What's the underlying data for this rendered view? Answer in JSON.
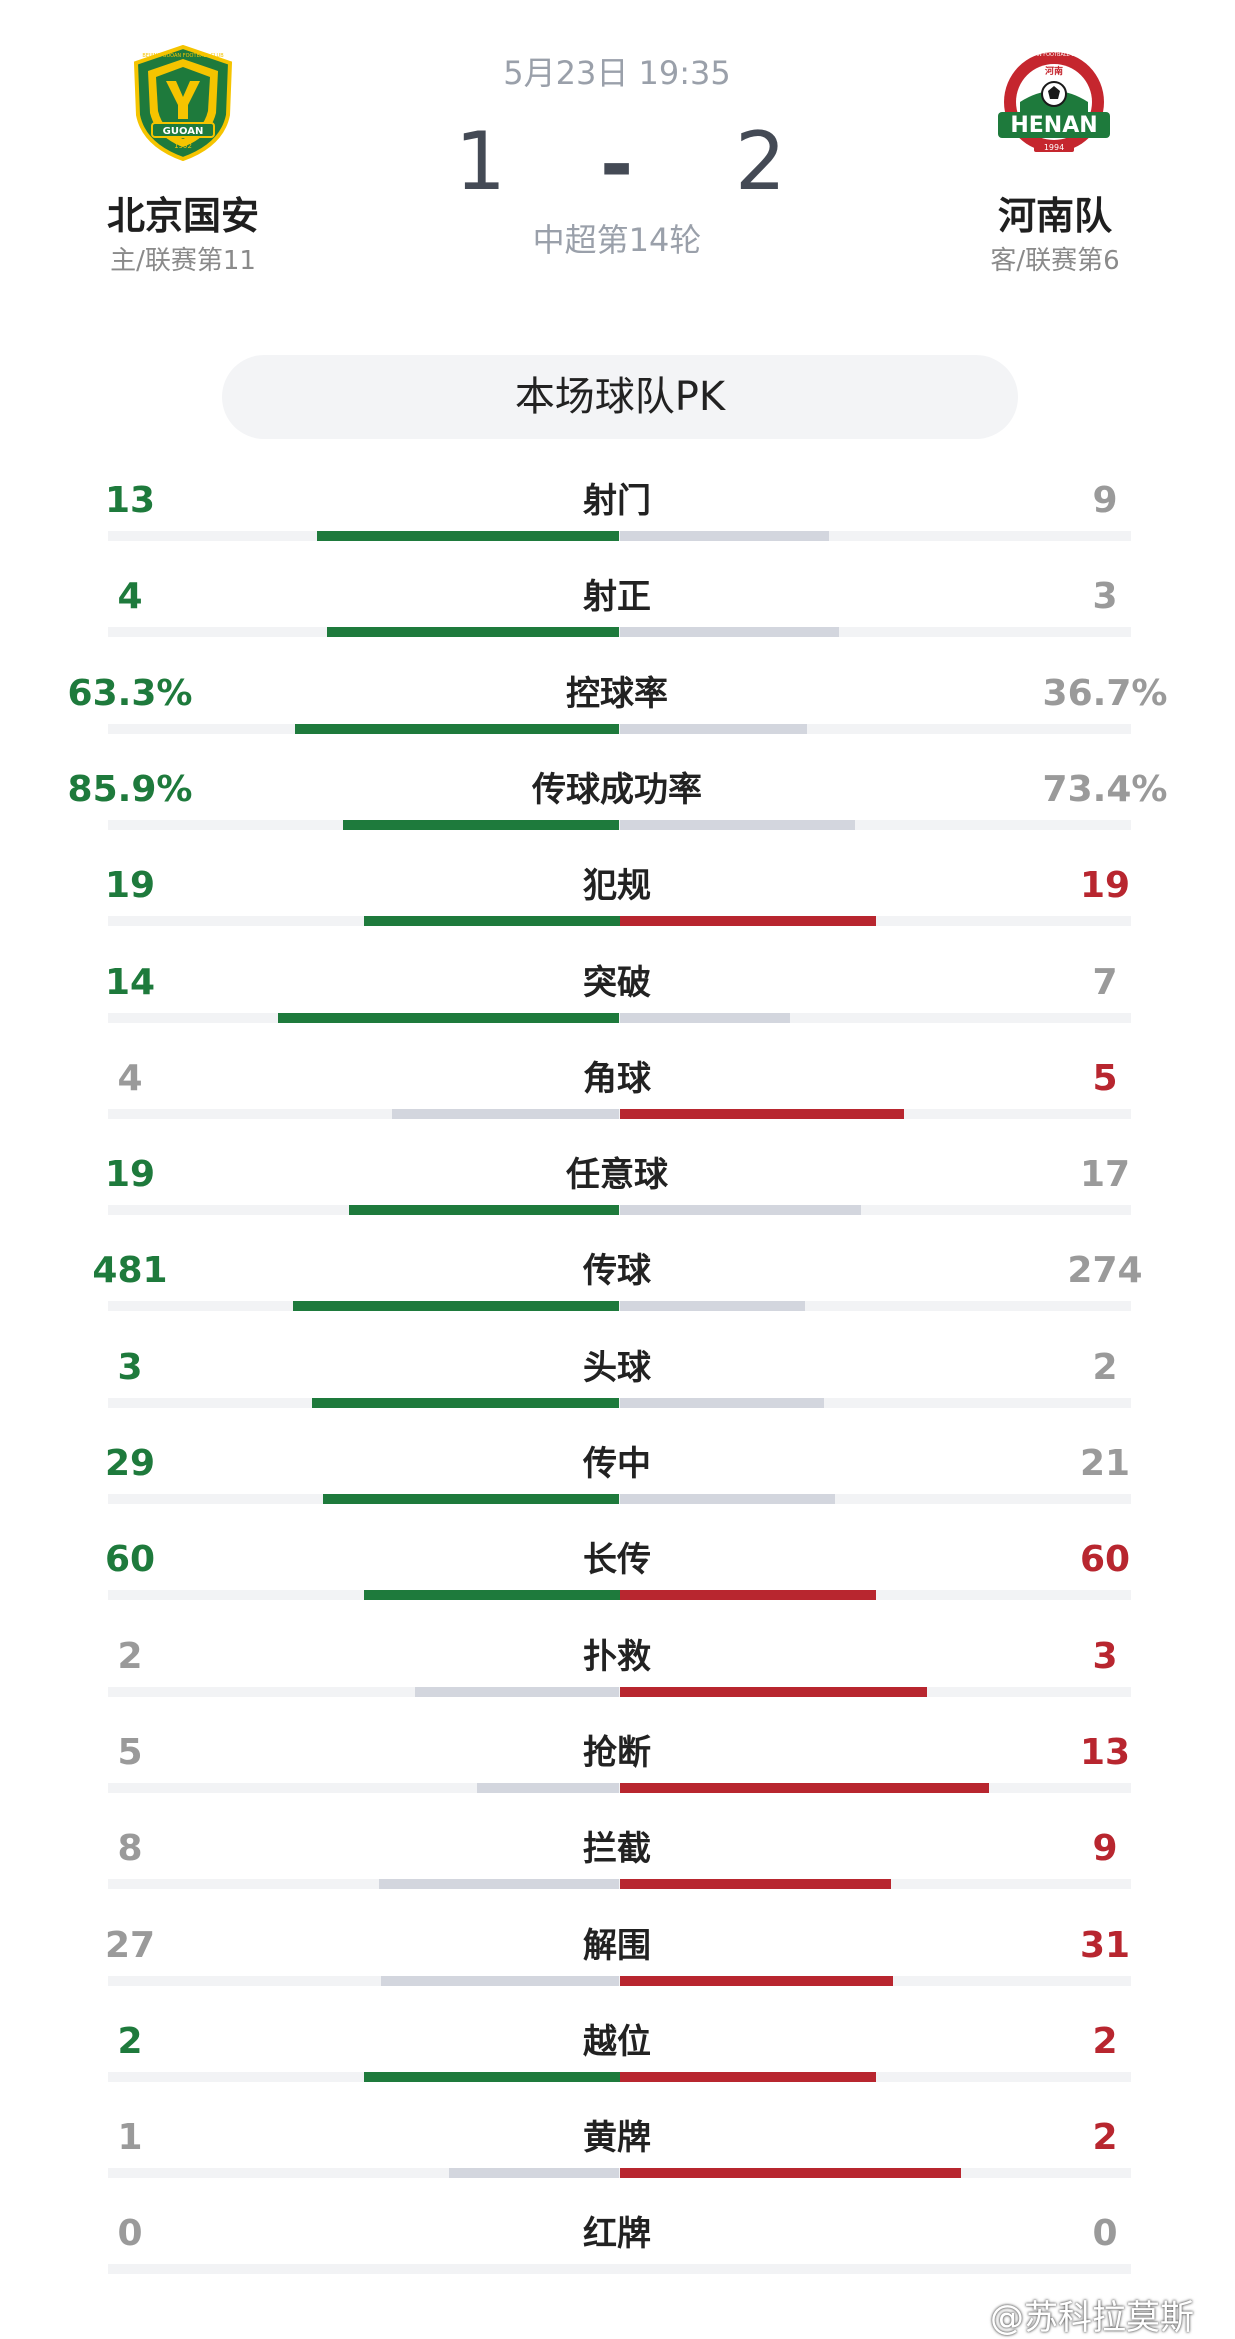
{
  "match": {
    "time": "5月23日 19:35",
    "home_score": "1",
    "dash": "-",
    "away_score": "2",
    "round": "中超第14轮"
  },
  "home": {
    "name": "北京国安",
    "sub": "主/联赛第11",
    "logo_text": "GUOAN",
    "logo_year": "1992",
    "logo_ring": "BEIJING GUOAN FOOTBALL CLUB"
  },
  "away": {
    "name": "河南队",
    "sub": "客/联赛第6",
    "logo_text": "HENAN",
    "logo_year": "1994",
    "logo_ring": "HENAN FOOTBALL CLUB",
    "logo_cn": "河南"
  },
  "pk_title": "本场球队PK",
  "colors": {
    "green": "#1e7a3c",
    "red": "#b8262f",
    "gray_text": "#9a9a9a",
    "gray_bar": "#d3d6de"
  },
  "stats": [
    {
      "label": "射门",
      "home": "13",
      "away": "9",
      "home_v": 13,
      "away_v": 9,
      "home_win": true,
      "away_win": false
    },
    {
      "label": "射正",
      "home": "4",
      "away": "3",
      "home_v": 4,
      "away_v": 3,
      "home_win": true,
      "away_win": false
    },
    {
      "label": "控球率",
      "home": "63.3%",
      "away": "36.7%",
      "home_v": 63.3,
      "away_v": 36.7,
      "home_win": true,
      "away_win": false
    },
    {
      "label": "传球成功率",
      "home": "85.9%",
      "away": "73.4%",
      "home_v": 85.9,
      "away_v": 73.4,
      "home_win": true,
      "away_win": false
    },
    {
      "label": "犯规",
      "home": "19",
      "away": "19",
      "home_v": 19,
      "away_v": 19,
      "home_win": true,
      "away_win": true
    },
    {
      "label": "突破",
      "home": "14",
      "away": "7",
      "home_v": 14,
      "away_v": 7,
      "home_win": true,
      "away_win": false
    },
    {
      "label": "角球",
      "home": "4",
      "away": "5",
      "home_v": 4,
      "away_v": 5,
      "home_win": false,
      "away_win": true
    },
    {
      "label": "任意球",
      "home": "19",
      "away": "17",
      "home_v": 19,
      "away_v": 17,
      "home_win": true,
      "away_win": false
    },
    {
      "label": "传球",
      "home": "481",
      "away": "274",
      "home_v": 481,
      "away_v": 274,
      "home_win": true,
      "away_win": false
    },
    {
      "label": "头球",
      "home": "3",
      "away": "2",
      "home_v": 3,
      "away_v": 2,
      "home_win": true,
      "away_win": false
    },
    {
      "label": "传中",
      "home": "29",
      "away": "21",
      "home_v": 29,
      "away_v": 21,
      "home_win": true,
      "away_win": false
    },
    {
      "label": "长传",
      "home": "60",
      "away": "60",
      "home_v": 60,
      "away_v": 60,
      "home_win": true,
      "away_win": true
    },
    {
      "label": "扑救",
      "home": "2",
      "away": "3",
      "home_v": 2,
      "away_v": 3,
      "home_win": false,
      "away_win": true
    },
    {
      "label": "抢断",
      "home": "5",
      "away": "13",
      "home_v": 5,
      "away_v": 13,
      "home_win": false,
      "away_win": true
    },
    {
      "label": "拦截",
      "home": "8",
      "away": "9",
      "home_v": 8,
      "away_v": 9,
      "home_win": false,
      "away_win": true
    },
    {
      "label": "解围",
      "home": "27",
      "away": "31",
      "home_v": 27,
      "away_v": 31,
      "home_win": false,
      "away_win": true
    },
    {
      "label": "越位",
      "home": "2",
      "away": "2",
      "home_v": 2,
      "away_v": 2,
      "home_win": true,
      "away_win": true
    },
    {
      "label": "黄牌",
      "home": "1",
      "away": "2",
      "home_v": 1,
      "away_v": 2,
      "home_win": false,
      "away_win": true
    },
    {
      "label": "红牌",
      "home": "0",
      "away": "0",
      "home_v": 0,
      "away_v": 0,
      "home_win": false,
      "away_win": false
    }
  ],
  "watermark": "@苏科拉莫斯"
}
